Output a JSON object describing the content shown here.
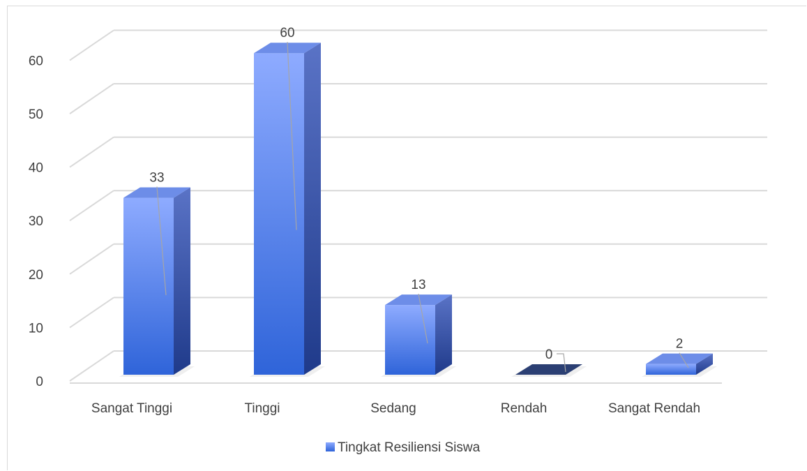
{
  "chart_data": {
    "type": "bar",
    "categories": [
      "Sangat Tinggi",
      "Tinggi",
      "Sedang",
      "Rendah",
      "Sangat Rendah"
    ],
    "series": [
      {
        "name": "Tingkat Resiliensi Siswa",
        "values": [
          33,
          60,
          13,
          0,
          2
        ]
      }
    ],
    "ylim": [
      0,
      60
    ],
    "yticks": [
      0,
      10,
      20,
      30,
      40,
      50,
      60
    ],
    "grid": true,
    "legend": "bottom",
    "style": "3d-column"
  },
  "colors": {
    "bar_front_top": "#8eabff",
    "bar_front_bottom": "#2f64d9",
    "bar_side": "#27418f",
    "bar_top": "#6d8de8",
    "grid": "#d9d9d9",
    "text": "#404040",
    "zero_bar": "#2b3f73"
  }
}
